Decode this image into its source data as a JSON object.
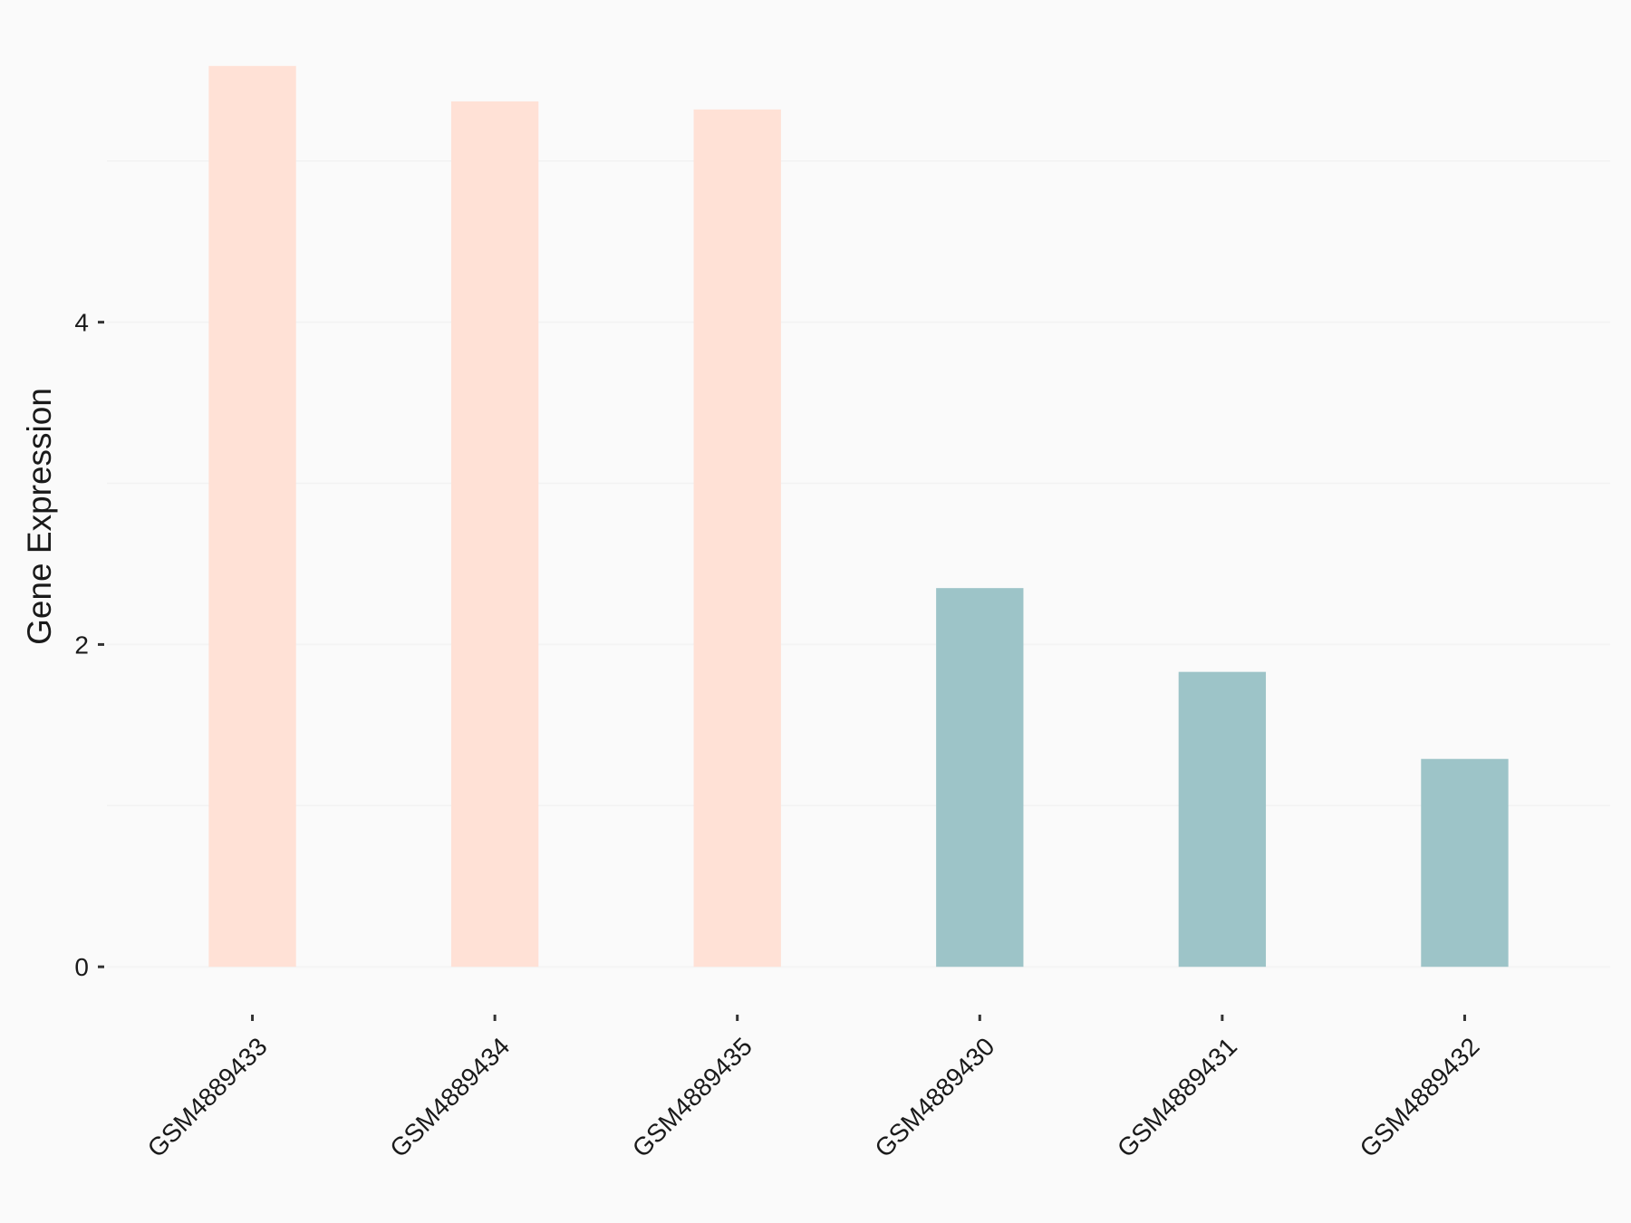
{
  "chart_data": {
    "type": "bar",
    "y_label": "Gene Expression",
    "categories": [
      "GSM4889433",
      "GSM4889434",
      "GSM4889435",
      "GSM4889430",
      "GSM4889431",
      "GSM4889432"
    ],
    "values": [
      5.59,
      5.37,
      5.32,
      2.35,
      1.83,
      1.29
    ],
    "colors": [
      "#ffe1d6",
      "#ffe1d6",
      "#ffe1d6",
      "#9dc4c8",
      "#9dc4c8",
      "#9dc4c8"
    ],
    "ylim": [
      -0.28,
      5.87
    ],
    "yticks": [
      0,
      2,
      4
    ],
    "minor_yticks": [
      1,
      3,
      5
    ],
    "grid": true
  }
}
